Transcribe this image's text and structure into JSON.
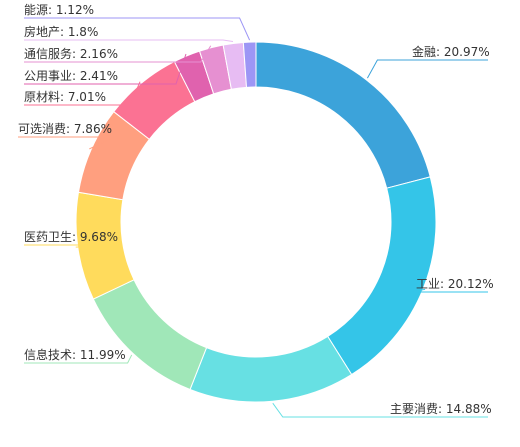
{
  "chart_data": {
    "type": "pie",
    "variant": "donut",
    "slices": [
      {
        "label": "金融",
        "value": 20.97,
        "display": "金融: 20.97%",
        "color": "#3ca3da"
      },
      {
        "label": "工业",
        "value": 20.12,
        "display": "工业: 20.12%",
        "color": "#34c5e8"
      },
      {
        "label": "主要消费",
        "value": 14.88,
        "display": "主要消费: 14.88%",
        "color": "#67e0e3"
      },
      {
        "label": "信息技术",
        "value": 11.99,
        "display": "信息技术: 11.99%",
        "color": "#a0e7b8"
      },
      {
        "label": "医药卫生",
        "value": 9.68,
        "display": "医药卫生: 9.68%",
        "color": "#ffdb5c"
      },
      {
        "label": "可选消费",
        "value": 7.86,
        "display": "可选消费: 7.86%",
        "color": "#ff9f7f"
      },
      {
        "label": "原材料",
        "value": 7.01,
        "display": "原材料: 7.01%",
        "color": "#fb7293"
      },
      {
        "label": "公用事业",
        "value": 2.41,
        "display": "公用事业: 2.41%",
        "color": "#e062ae"
      },
      {
        "label": "通信服务",
        "value": 2.16,
        "display": "通信服务: 2.16%",
        "color": "#e690d1"
      },
      {
        "label": "房地产",
        "value": 1.8,
        "display": "房地产: 1.8%",
        "color": "#e7bcf3"
      },
      {
        "label": "能源",
        "value": 1.12,
        "display": "能源: 1.12%",
        "color": "#9d96f5"
      }
    ],
    "legend": "none",
    "label_placement": "outside-with-leader-lines"
  }
}
